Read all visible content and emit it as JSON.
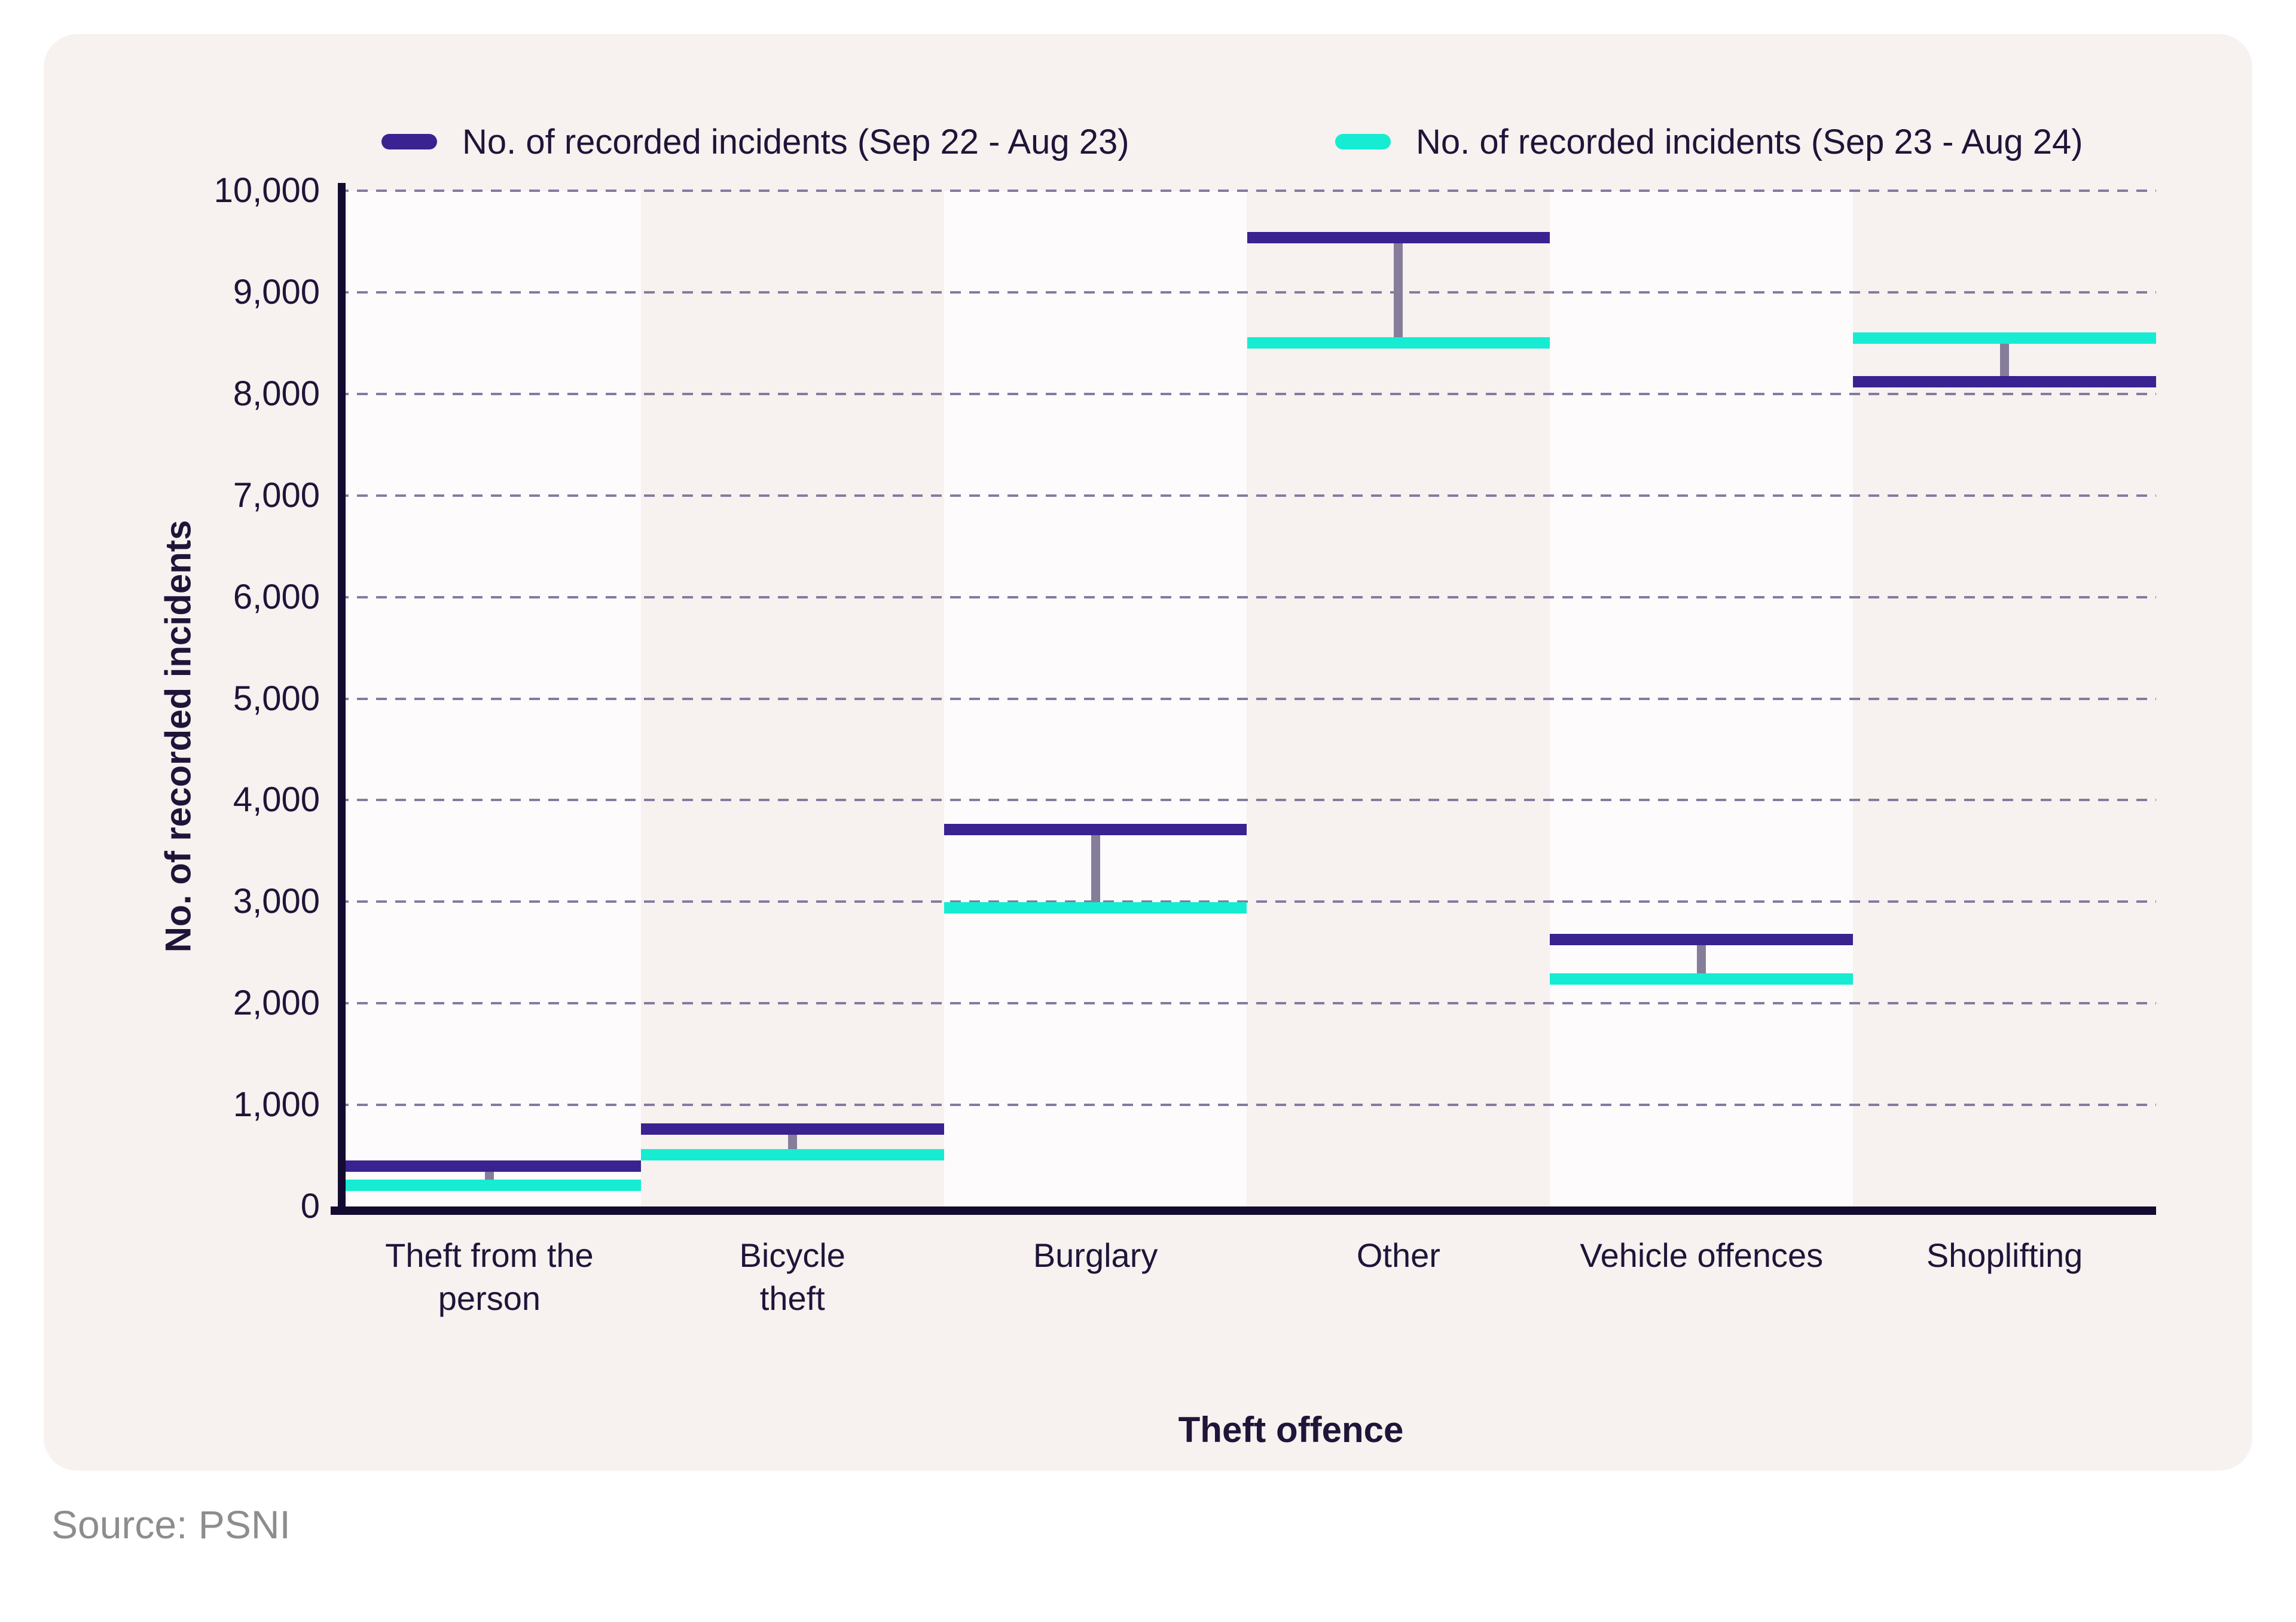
{
  "legend": [
    {
      "label": "No. of recorded incidents (Sep 22 - Aug 23)",
      "color": "#3a2290"
    },
    {
      "label": "No. of recorded incidents (Sep 23 - Aug 24)",
      "color": "#16ecd2"
    }
  ],
  "source": "Source: PSNI",
  "colors": {
    "page_bg": "#ffffff",
    "card_bg": "#f7f1ef",
    "band_light": "#fdfbfc",
    "grid": "#837ba0",
    "axis": "#130b30",
    "text": "#1e1539",
    "connector": "#857d99",
    "series1": "#3a2290",
    "series2": "#16ecd2",
    "source_text": "#8d8d8d"
  },
  "chart_data": {
    "type": "dumbbell",
    "title": "",
    "xlabel": "Theft offence",
    "ylabel": "No. of recorded incidents",
    "ylim": [
      0,
      10000
    ],
    "ytick_step": 1000,
    "grid": "horizontal-dashed",
    "legend_position": "top",
    "categories": [
      "Theft from the person",
      "Bicycle theft",
      "Burglary",
      "Other",
      "Vehicle offences",
      "Shoplifting"
    ],
    "category_label_lines": [
      [
        "Theft from the",
        "person"
      ],
      [
        "Bicycle",
        "theft"
      ],
      [
        "Burglary"
      ],
      [
        "Other"
      ],
      [
        "Vehicle offences"
      ],
      [
        "Shoplifting"
      ]
    ],
    "series": [
      {
        "name": "No. of recorded incidents (Sep 22 - Aug 23)",
        "color": "#3a2290",
        "values": [
          400,
          760,
          3710,
          9540,
          2630,
          8120
        ]
      },
      {
        "name": "No. of recorded incidents (Sep 23 - Aug 24)",
        "color": "#16ecd2",
        "values": [
          210,
          510,
          2940,
          8500,
          2240,
          8550
        ]
      }
    ]
  }
}
